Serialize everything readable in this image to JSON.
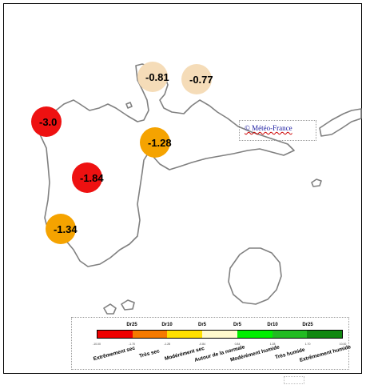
{
  "map": {
    "copyright": "© Météo-France",
    "stations": [
      {
        "value": "-0.81",
        "color": "#f5dcb8"
      },
      {
        "value": "-0.77",
        "color": "#f5dcb8"
      },
      {
        "value": "-3.0",
        "color": "#ee1111"
      },
      {
        "value": "-1.28",
        "color": "#f5a300"
      },
      {
        "value": "-1.84",
        "color": "#ee1111"
      },
      {
        "value": "-1.34",
        "color": "#f5a300"
      }
    ]
  },
  "legend": {
    "codes": [
      "Dr25",
      "Dr10",
      "Dr5",
      "Dr5",
      "Dr10",
      "Dr25"
    ],
    "tick_values": [
      "-10.00",
      "-1.70",
      "-1.28",
      "-0.84",
      "0.84",
      "1.28",
      "1.70",
      "10.00"
    ],
    "categories": [
      "Extrêmement sec",
      "Très sec",
      "Modérément sec",
      "Autour de la normale",
      "Modérément humide",
      "Très humide",
      "Extrêmement humide"
    ],
    "colors": [
      "#ee0000",
      "#f57a00",
      "#ffe000",
      "#fffacd",
      "#00ee00",
      "#22bb22",
      "#118811"
    ]
  }
}
